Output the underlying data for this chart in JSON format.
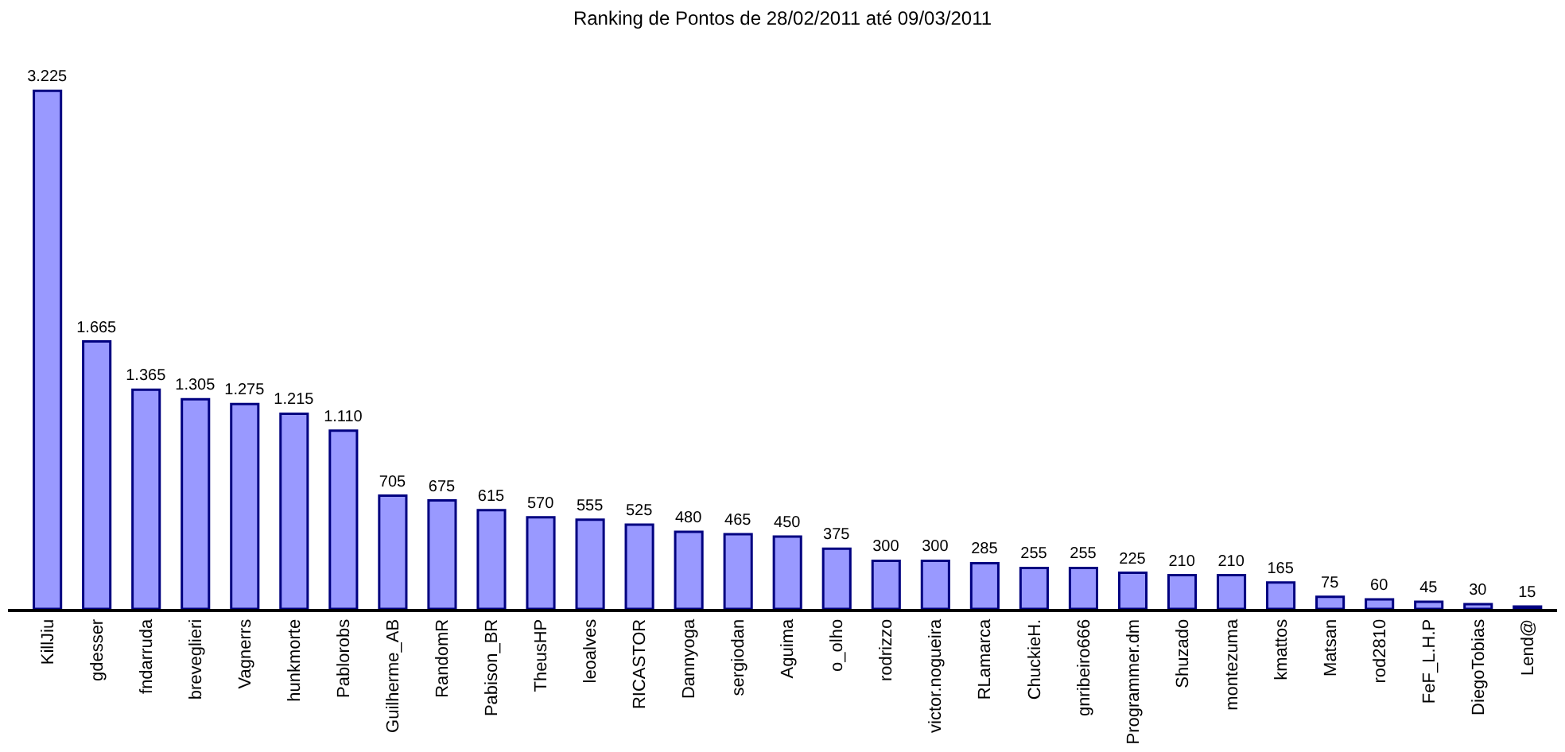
{
  "chart_data": {
    "type": "bar",
    "title": "Ranking de Pontos de 28/02/2011 até 09/03/2011",
    "categories": [
      "KillJiu",
      "gdesser",
      "fndarruda",
      "breveglieri",
      "Vagnerrs",
      "hunkmorte",
      "Pablorobs",
      "Guilherme_AB",
      "RandomR",
      "Pabison_BR",
      "TheusHP",
      "leoalves",
      "RICASTOR",
      "Dannyoga",
      "sergiodan",
      "Aguima",
      "o_olho",
      "rodrizzo",
      "victor.nogueira",
      "RLamarca",
      "ChuckieH.",
      "gnribeiro666",
      "Programmer.dm",
      "Shuzado",
      "montezuma",
      "kmattos",
      "Matsan",
      "rod2810",
      "FeF_L.H.P",
      "DiegoTobias",
      "Lend@"
    ],
    "values": [
      3225,
      1665,
      1365,
      1305,
      1275,
      1215,
      1110,
      705,
      675,
      615,
      570,
      555,
      525,
      480,
      465,
      450,
      375,
      300,
      300,
      285,
      255,
      255,
      225,
      210,
      210,
      165,
      75,
      60,
      45,
      30,
      15
    ],
    "value_labels": [
      "3.225",
      "1.665",
      "1.365",
      "1.305",
      "1.275",
      "1.215",
      "1.110",
      "705",
      "675",
      "615",
      "570",
      "555",
      "525",
      "480",
      "465",
      "450",
      "375",
      "300",
      "300",
      "285",
      "255",
      "255",
      "225",
      "210",
      "210",
      "165",
      "75",
      "60",
      "45",
      "30",
      "15"
    ],
    "color": "#9999ff"
  }
}
